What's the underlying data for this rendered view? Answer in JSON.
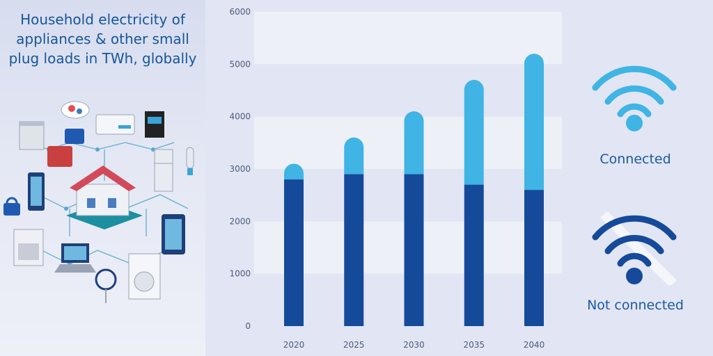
{
  "title": "Household electricity of appliances & other small plug loads in TWh, globally",
  "legend": {
    "connected": "Connected",
    "not_connected": "Not connected"
  },
  "colors": {
    "connected": "#3fb4e5",
    "not_connected": "#154a9a",
    "band_light": "#eef0f8",
    "band_dark": "#e2e5f3"
  },
  "chart_data": {
    "type": "bar",
    "stacked": true,
    "categories": [
      "2020",
      "2025",
      "2030",
      "2035",
      "2040"
    ],
    "series": [
      {
        "name": "Not connected",
        "values": [
          2800,
          2900,
          2900,
          2700,
          2600
        ]
      },
      {
        "name": "Connected",
        "values": [
          300,
          700,
          1200,
          2000,
          2600
        ]
      }
    ],
    "ylim": [
      0,
      6000
    ],
    "yticks": [
      0,
      1000,
      2000,
      3000,
      4000,
      5000,
      6000
    ],
    "grid": "alternating bands",
    "title": "Household electricity of appliances & other small plug loads in TWh, globally",
    "xlabel": "",
    "ylabel": ""
  }
}
